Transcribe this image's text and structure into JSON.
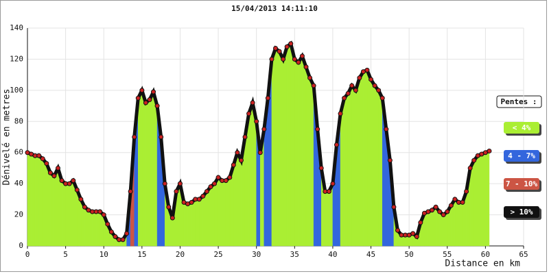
{
  "chart_data": {
    "type": "elevation_profile",
    "title": "15/04/2013 14:11:10",
    "x_label": "Distance en km",
    "y_label": "Dénivelé en metres",
    "legend_title": "Pentes :",
    "legend": [
      {
        "label": "< 4%",
        "color": "#aaee33",
        "max": 4
      },
      {
        "label": "4 - 7%",
        "color": "#3366dd",
        "max": 7
      },
      {
        "label": "7 - 10%",
        "color": "#cc5544",
        "max": 10
      },
      {
        "label": "> 10%",
        "color": "#111111"
      }
    ],
    "marker_color": "#cc2222",
    "line_color": "#111111",
    "xlim": [
      0,
      65
    ],
    "xticks": [
      0,
      5,
      10,
      15,
      20,
      25,
      30,
      35,
      40,
      45,
      50,
      55,
      60,
      65
    ],
    "ylim": [
      0,
      140
    ],
    "yticks": [
      0,
      20,
      40,
      60,
      80,
      100,
      120,
      140
    ],
    "grid": true,
    "x": [
      0,
      0.5,
      1,
      1.5,
      2,
      2.5,
      3,
      3.5,
      4,
      4.5,
      5,
      5.5,
      6,
      6.5,
      7,
      7.5,
      8,
      8.5,
      9,
      9.5,
      10,
      10.5,
      11,
      11.5,
      12,
      12.5,
      13,
      13.5,
      14,
      14.5,
      15,
      15.5,
      16,
      16.5,
      17,
      17.5,
      18,
      18.5,
      19,
      19.5,
      20,
      20.5,
      21,
      21.5,
      22,
      22.5,
      23,
      23.5,
      24,
      24.5,
      25,
      25.5,
      26,
      26.5,
      27,
      27.5,
      28,
      28.5,
      29,
      29.5,
      30,
      30.5,
      31,
      31.5,
      32,
      32.5,
      33,
      33.5,
      34,
      34.5,
      35,
      35.5,
      36,
      36.5,
      37,
      37.5,
      38,
      38.5,
      39,
      39.5,
      40,
      40.5,
      41,
      41.5,
      42,
      42.5,
      43,
      43.5,
      44,
      44.5,
      45,
      45.5,
      46,
      46.5,
      47,
      47.5,
      48,
      48.5,
      49,
      49.5,
      50,
      50.5,
      51,
      51.5,
      52,
      52.5,
      53,
      53.5,
      54,
      54.5,
      55,
      55.5,
      56,
      56.5,
      57,
      57.5,
      58,
      58.5,
      59,
      59.5,
      60,
      60.5
    ],
    "values": [
      60,
      59,
      58,
      58,
      56,
      53,
      47,
      45,
      50,
      42,
      40,
      40,
      42,
      36,
      30,
      25,
      23,
      22,
      22,
      22,
      20,
      14,
      9,
      6,
      4,
      4,
      8,
      35,
      70,
      95,
      100,
      92,
      94,
      99,
      90,
      70,
      40,
      25,
      18,
      35,
      40,
      28,
      27,
      28,
      30,
      30,
      32,
      35,
      38,
      40,
      44,
      42,
      42,
      44,
      52,
      60,
      55,
      70,
      85,
      92,
      80,
      60,
      75,
      95,
      120,
      127,
      125,
      120,
      128,
      130,
      120,
      118,
      122,
      115,
      108,
      103,
      75,
      50,
      35,
      35,
      40,
      65,
      85,
      95,
      98,
      103,
      100,
      108,
      112,
      113,
      107,
      103,
      100,
      95,
      75,
      55,
      25,
      10,
      7,
      7,
      7,
      8,
      6,
      15,
      21,
      22,
      23,
      25,
      22,
      20,
      22,
      26,
      30,
      28,
      28,
      35,
      50,
      55,
      58,
      59,
      60,
      61
    ]
  }
}
